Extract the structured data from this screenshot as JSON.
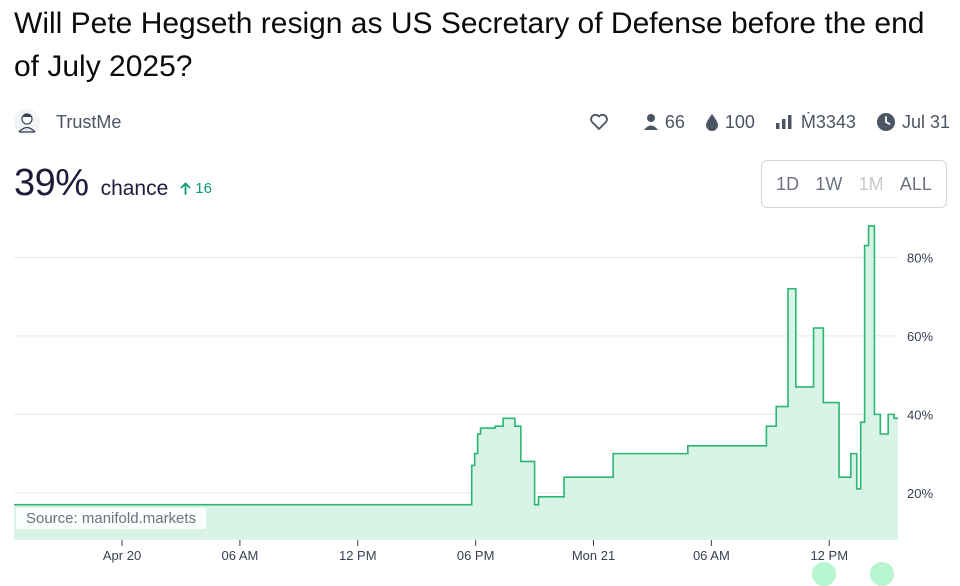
{
  "market": {
    "title": "Will Pete Hegseth resign as US Secretary of Defense before the end of July 2025?",
    "creator": "TrustMe",
    "traders": "66",
    "liquidity": "100",
    "volume": "Ṁ3343",
    "close_date": "Jul 31"
  },
  "probability": {
    "value": "39%",
    "label": "chance",
    "change": "16"
  },
  "range_buttons": [
    {
      "label": "1D",
      "disabled": false
    },
    {
      "label": "1W",
      "disabled": false
    },
    {
      "label": "1M",
      "disabled": true
    },
    {
      "label": "ALL",
      "disabled": false
    }
  ],
  "source_label": "Source: manifold.markets",
  "colors": {
    "accent": "#2bb673",
    "fill": "#d5f2e3",
    "grid": "#e5e7eb",
    "up": "#0f9a76"
  },
  "chart_data": {
    "type": "area",
    "x_labels": [
      "Apr 20",
      "06 AM",
      "12 PM",
      "06 PM",
      "Mon 21",
      "06 AM",
      "12 PM"
    ],
    "x_ticks_hours": [
      0,
      6,
      12,
      18,
      24,
      30,
      36
    ],
    "y_ticks": [
      20,
      40,
      60,
      80
    ],
    "y_tick_labels": [
      "20%",
      "40%",
      "60%",
      "80%"
    ],
    "xlim_hours": [
      -5.5,
      39.5
    ],
    "ylim": [
      8,
      89
    ],
    "grid": true,
    "series": [
      {
        "x": [
          -5.5,
          17.8,
          17.95,
          18.1,
          18.25,
          19.0,
          19.4,
          20.0,
          20.3,
          21.0,
          21.2,
          22.5,
          23.0,
          24.5,
          25.0,
          28.5,
          28.8,
          32.8,
          33.3,
          33.9,
          34.3,
          35.2,
          35.7,
          36.5,
          36.9,
          37.1,
          37.3,
          37.4,
          37.6,
          37.8,
          38.0,
          38.3,
          38.6,
          39.0,
          39.3
        ],
        "y": [
          17,
          27,
          30,
          35,
          36.5,
          37,
          39,
          37,
          28,
          17,
          19,
          24,
          24,
          24,
          30,
          30,
          32,
          37,
          42,
          72,
          47,
          62,
          43,
          24,
          24,
          30,
          30,
          21,
          38,
          83,
          88,
          40,
          35,
          40,
          39
        ]
      }
    ]
  }
}
